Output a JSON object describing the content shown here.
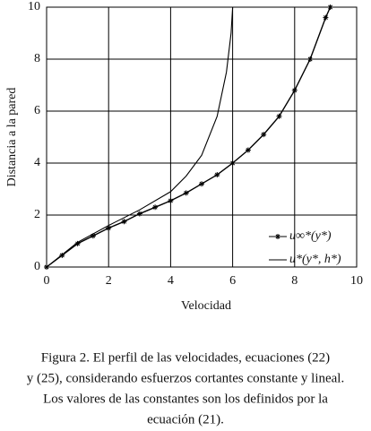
{
  "chart_data": {
    "type": "line",
    "xlabel": "Velocidad",
    "ylabel": "Distancia a la pared",
    "xlim": [
      0,
      10
    ],
    "ylim": [
      0,
      10
    ],
    "xticks": [
      0,
      2,
      4,
      6,
      8,
      10
    ],
    "yticks": [
      0,
      2,
      4,
      6,
      8,
      10
    ],
    "grid": true,
    "legend": "lower right",
    "series": [
      {
        "name": "u∞*(y*)",
        "color": "#000000",
        "marker": "star",
        "x": [
          0,
          0.5,
          1,
          1.5,
          2,
          2.5,
          3,
          3.5,
          4,
          4.5,
          5,
          5.5,
          6,
          6.5,
          7,
          7.5,
          8,
          8.5,
          9,
          9.15
        ],
        "values": [
          0,
          0.45,
          0.9,
          1.2,
          1.5,
          1.75,
          2.05,
          2.3,
          2.55,
          2.85,
          3.2,
          3.55,
          4.0,
          4.5,
          5.1,
          5.8,
          6.8,
          8.0,
          9.6,
          10
        ]
      },
      {
        "name": "u*(y*, h*)",
        "color": "#000000",
        "marker": "none",
        "x": [
          0,
          1,
          2,
          3,
          4,
          4.5,
          5,
          5.5,
          5.8,
          5.95,
          6.0
        ],
        "values": [
          0,
          0.95,
          1.6,
          2.2,
          2.9,
          3.5,
          4.3,
          5.8,
          7.5,
          9,
          10
        ]
      }
    ],
    "caption": [
      "Figura 2. El perfil de las velocidades, ecuaciones (22)",
      "y (25), considerando esfuerzos cortantes constante y lineal.",
      "Los valores de las constantes son los definidos por la",
      "ecuación (21)."
    ]
  }
}
